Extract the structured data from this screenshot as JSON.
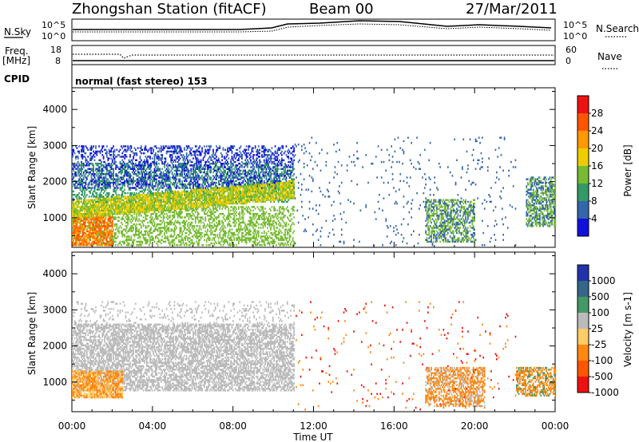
{
  "header": {
    "station": "Zhongshan Station (fitACF)",
    "beam": "Beam 00",
    "date": "27/Mar/2011"
  },
  "summary": {
    "nsky_label": "N.Sky",
    "nsky_ticks": [
      "10^5",
      "10^0"
    ],
    "nsearch_label": "N.Search",
    "nsearch_ticks": [
      "10^5",
      "10^0"
    ],
    "freq_label": "Freq.",
    "freq_unit": "[MHz]",
    "freq_ticks": [
      "18",
      "8"
    ],
    "nave_label": "Nave",
    "nave_ticks": [
      "60",
      "0"
    ],
    "cpid_label": "CPID",
    "cpid_text": "normal (fast stereo) 153"
  },
  "axes": {
    "x_ticks": [
      "00:00",
      "04:00",
      "08:00",
      "12:00",
      "16:00",
      "20:00",
      "00:00"
    ],
    "xlabel": "Time UT",
    "ylabel": "Slant Range [km]",
    "y_ticks": [
      "4000",
      "3000",
      "2000",
      "1000"
    ]
  },
  "chart_data": [
    {
      "type": "heatmap",
      "title": "",
      "quantity": "Power",
      "colorbar_label": "Power [dB]",
      "xlabel": "",
      "ylabel": "Slant Range [km]",
      "x_unit": "hours UT",
      "xlim": [
        0,
        24
      ],
      "ylim": [
        180,
        4600
      ],
      "colorbar_ticks": [
        "28",
        "24",
        "20",
        "16",
        "12",
        "8",
        "4"
      ],
      "colorbar_colors": [
        "#ee1111",
        "#ff5500",
        "#ff9900",
        "#eecc00",
        "#77bb33",
        "#339966",
        "#3366aa",
        "#1111dd"
      ],
      "features": [
        {
          "t0": 0.0,
          "t1": 11.0,
          "r0": 600,
          "r1": 1700,
          "level": "high"
        },
        {
          "t0": 0.0,
          "t1": 11.0,
          "r0": 1700,
          "r1": 3000,
          "level": "medium"
        },
        {
          "t0": 17.5,
          "t1": 20.0,
          "r0": 250,
          "r1": 1500,
          "level": "medium"
        },
        {
          "t0": 22.5,
          "t1": 24.0,
          "r0": 800,
          "r1": 2000,
          "level": "medium"
        }
      ]
    },
    {
      "type": "heatmap",
      "title": "",
      "quantity": "Velocity",
      "colorbar_label": "Velocity [m s-1]",
      "xlabel": "Time UT",
      "ylabel": "Slant Range [km]",
      "x_unit": "hours UT",
      "xlim": [
        0,
        24
      ],
      "ylim": [
        180,
        4600
      ],
      "colorbar_ticks": [
        "1000",
        "500",
        "100",
        "25",
        "-25",
        "-100",
        "-500",
        "-1000"
      ],
      "colorbar_colors": [
        "#2233aa",
        "#336688",
        "#449966",
        "#bbbbbb",
        "#ffcc66",
        "#ff8811",
        "#ff5500",
        "#ee1111"
      ],
      "features": [
        {
          "t0": 0.0,
          "t1": 11.0,
          "r0": 700,
          "r1": 2600,
          "level": "ground scatter"
        },
        {
          "t0": 0.0,
          "t1": 2.5,
          "r0": 600,
          "r1": 1300,
          "level": "negative"
        },
        {
          "t0": 17.5,
          "t1": 20.5,
          "r0": 300,
          "r1": 1400,
          "level": "negative"
        },
        {
          "t0": 22.0,
          "t1": 24.0,
          "r0": 600,
          "r1": 1400,
          "level": "negative"
        }
      ]
    }
  ]
}
